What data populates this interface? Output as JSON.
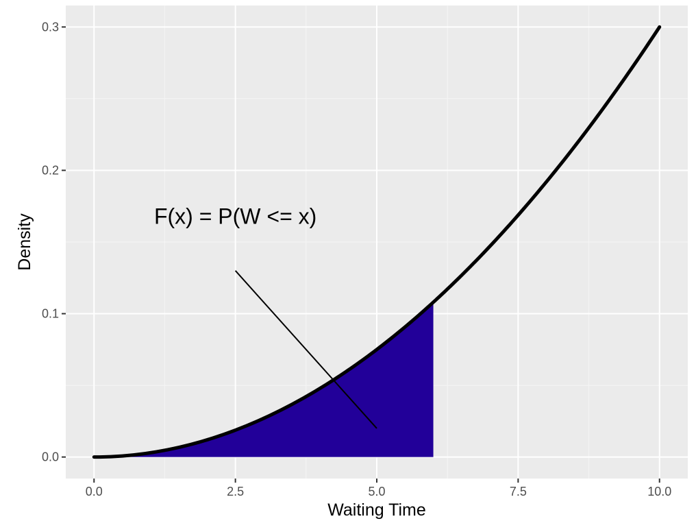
{
  "chart_data": {
    "type": "area",
    "title": "",
    "xlabel": "Waiting Time",
    "ylabel": "Density",
    "xlim": [
      -0.5,
      10.5
    ],
    "ylim": [
      -0.015,
      0.315
    ],
    "x_ticks": [
      {
        "value": 0,
        "label": "0.0"
      },
      {
        "value": 2.5,
        "label": "2.5"
      },
      {
        "value": 5,
        "label": "5.0"
      },
      {
        "value": 7.5,
        "label": "7.5"
      },
      {
        "value": 10,
        "label": "10.0"
      }
    ],
    "y_ticks": [
      {
        "value": 0,
        "label": "0.0"
      },
      {
        "value": 0.1,
        "label": "0.1"
      },
      {
        "value": 0.2,
        "label": "0.2"
      },
      {
        "value": 0.3,
        "label": "0.3"
      }
    ],
    "grid": true,
    "curve": {
      "x": [
        0,
        1,
        2,
        3,
        4,
        5,
        6,
        7,
        8,
        9,
        10
      ],
      "y": [
        0,
        0.003,
        0.012,
        0.027,
        0.048,
        0.075,
        0.108,
        0.147,
        0.192,
        0.243,
        0.3
      ],
      "color": "#000000"
    },
    "shaded_region": {
      "x_from": 0,
      "x_to": 6,
      "color": "#220099"
    },
    "annotation": {
      "text": "F(x) = P(W <= x)",
      "text_x": 2.5,
      "text_y": 0.168,
      "arrow_from": [
        2.5,
        0.13
      ],
      "arrow_to": [
        5,
        0.02
      ]
    }
  }
}
